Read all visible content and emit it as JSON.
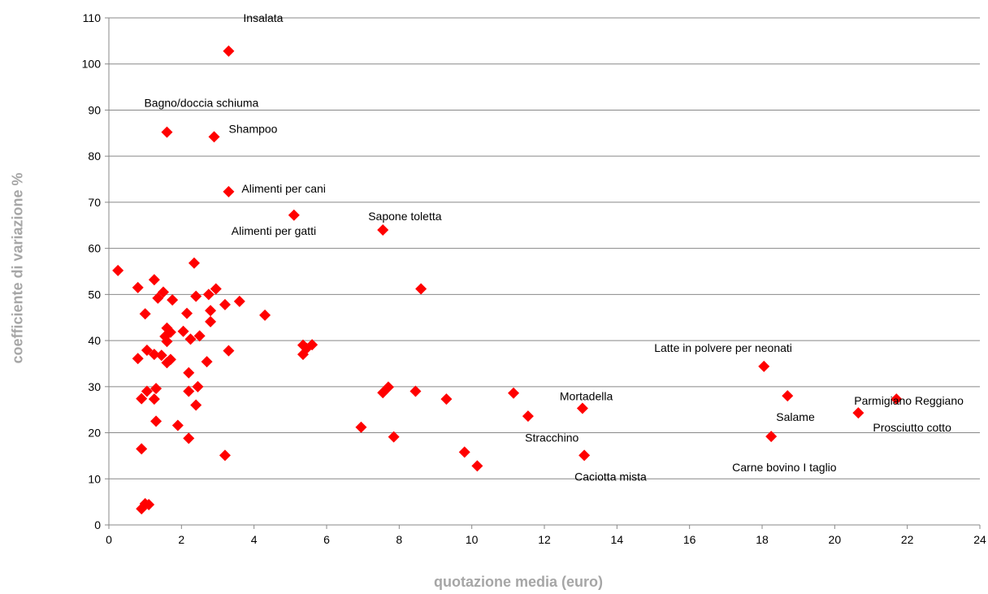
{
  "chart_data": {
    "type": "scatter",
    "xlabel": "quotazione media (euro)",
    "ylabel": "coefficiente di variazione %",
    "xlim": [
      0,
      24
    ],
    "ylim": [
      0,
      110
    ],
    "xticks": [
      0,
      2,
      4,
      6,
      8,
      10,
      12,
      14,
      16,
      18,
      20,
      22,
      24
    ],
    "yticks": [
      0,
      10,
      20,
      30,
      40,
      50,
      60,
      70,
      80,
      90,
      100,
      110
    ],
    "grid": "horizontal",
    "marker_color": "#ff0000",
    "points": [
      {
        "x": 0.25,
        "y": 55.2
      },
      {
        "x": 0.8,
        "y": 51.5
      },
      {
        "x": 0.8,
        "y": 36.1
      },
      {
        "x": 0.9,
        "y": 27.4
      },
      {
        "x": 0.9,
        "y": 16.5
      },
      {
        "x": 0.9,
        "y": 3.5
      },
      {
        "x": 1.0,
        "y": 45.8
      },
      {
        "x": 1.0,
        "y": 4.6
      },
      {
        "x": 1.05,
        "y": 37.9
      },
      {
        "x": 1.05,
        "y": 29.0
      },
      {
        "x": 1.1,
        "y": 4.4
      },
      {
        "x": 1.25,
        "y": 53.2
      },
      {
        "x": 1.25,
        "y": 37.0
      },
      {
        "x": 1.25,
        "y": 27.3
      },
      {
        "x": 1.3,
        "y": 29.6
      },
      {
        "x": 1.3,
        "y": 22.5
      },
      {
        "x": 1.35,
        "y": 49.2
      },
      {
        "x": 1.45,
        "y": 36.8
      },
      {
        "x": 1.5,
        "y": 50.5
      },
      {
        "x": 1.55,
        "y": 40.9
      },
      {
        "x": 1.6,
        "y": 42.7
      },
      {
        "x": 1.6,
        "y": 39.8
      },
      {
        "x": 1.6,
        "y": 35.2
      },
      {
        "x": 1.7,
        "y": 41.8
      },
      {
        "x": 1.7,
        "y": 35.9
      },
      {
        "x": 1.75,
        "y": 48.8
      },
      {
        "x": 1.9,
        "y": 21.6
      },
      {
        "x": 2.05,
        "y": 42.0
      },
      {
        "x": 2.15,
        "y": 45.9
      },
      {
        "x": 2.2,
        "y": 33.0
      },
      {
        "x": 2.2,
        "y": 29.0
      },
      {
        "x": 2.2,
        "y": 18.8
      },
      {
        "x": 2.25,
        "y": 40.3
      },
      {
        "x": 2.35,
        "y": 56.8
      },
      {
        "x": 2.4,
        "y": 49.6
      },
      {
        "x": 2.4,
        "y": 26.0
      },
      {
        "x": 2.45,
        "y": 30.0
      },
      {
        "x": 2.5,
        "y": 41.0
      },
      {
        "x": 2.7,
        "y": 35.4
      },
      {
        "x": 2.75,
        "y": 50.0
      },
      {
        "x": 2.8,
        "y": 46.5
      },
      {
        "x": 2.8,
        "y": 44.1
      },
      {
        "x": 2.95,
        "y": 51.2
      },
      {
        "x": 3.2,
        "y": 47.8
      },
      {
        "x": 3.2,
        "y": 15.1
      },
      {
        "x": 3.3,
        "y": 37.8
      },
      {
        "x": 3.6,
        "y": 48.5
      },
      {
        "x": 4.3,
        "y": 45.5
      },
      {
        "x": 5.35,
        "y": 39.0
      },
      {
        "x": 5.35,
        "y": 37.0
      },
      {
        "x": 5.45,
        "y": 38.3
      },
      {
        "x": 5.6,
        "y": 39.1
      },
      {
        "x": 6.95,
        "y": 21.2
      },
      {
        "x": 7.55,
        "y": 28.7
      },
      {
        "x": 7.7,
        "y": 29.9
      },
      {
        "x": 7.85,
        "y": 19.1
      },
      {
        "x": 8.45,
        "y": 29.0
      },
      {
        "x": 8.6,
        "y": 51.2
      },
      {
        "x": 9.3,
        "y": 27.3
      },
      {
        "x": 9.8,
        "y": 15.8
      },
      {
        "x": 10.15,
        "y": 12.8
      },
      {
        "x": 11.15,
        "y": 28.6
      },
      {
        "x": 11.55,
        "y": 23.6
      },
      {
        "x": 1.6,
        "y": 85.2,
        "label": "Bagno/doccia schiuma"
      },
      {
        "x": 2.9,
        "y": 84.2,
        "label": "Shampoo"
      },
      {
        "x": 3.3,
        "y": 102.8,
        "label": "Insalata"
      },
      {
        "x": 3.3,
        "y": 72.3,
        "label": "Alimenti per cani"
      },
      {
        "x": 5.1,
        "y": 67.2,
        "label": "Alimenti per gatti"
      },
      {
        "x": 7.55,
        "y": 64.0,
        "label": "Sapone toletta"
      },
      {
        "x": 13.05,
        "y": 25.3,
        "label": "Mortadella"
      },
      {
        "x": 13.1,
        "y": 15.1,
        "label": "Caciotta mista"
      },
      {
        "x": 13.1,
        "y": 15.1,
        "label": "Stracchino",
        "hidden": true
      },
      {
        "x": 18.05,
        "y": 34.4,
        "label": "Latte in polvere per neonati"
      },
      {
        "x": 18.7,
        "y": 28.0,
        "label": "Salame"
      },
      {
        "x": 18.25,
        "y": 19.2,
        "label": "Carne bovino I taglio"
      },
      {
        "x": 20.65,
        "y": 24.3,
        "label": "Prosciutto cotto"
      },
      {
        "x": 21.7,
        "y": 27.3,
        "label": "Parmigiano Reggiano"
      }
    ]
  }
}
